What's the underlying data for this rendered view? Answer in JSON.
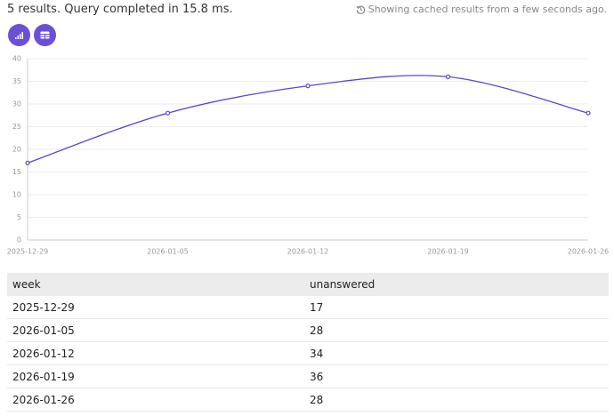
{
  "status": "5 results. Query completed in 15.8 ms.",
  "cache_note": "Showing cached results from a few seconds ago.",
  "chart_data": {
    "type": "line",
    "x": [
      "2025-12-29",
      "2026-01-05",
      "2026-01-12",
      "2026-01-19",
      "2026-01-26"
    ],
    "values": [
      17,
      28,
      34,
      36,
      28
    ],
    "color": "#5b45d6",
    "ylim": [
      0,
      40
    ],
    "yticks": [
      0,
      5,
      10,
      15,
      20,
      25,
      30,
      35,
      40
    ],
    "grid": true
  },
  "table": {
    "columns": [
      "week",
      "unanswered"
    ],
    "rows": [
      [
        "2025-12-29",
        17
      ],
      [
        "2026-01-05",
        28
      ],
      [
        "2026-01-12",
        34
      ],
      [
        "2026-01-19",
        36
      ],
      [
        "2026-01-26",
        28
      ]
    ]
  }
}
